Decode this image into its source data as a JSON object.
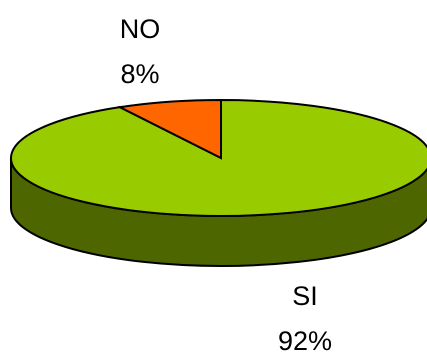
{
  "chart_data": {
    "type": "pie",
    "style": "3d",
    "slices": [
      {
        "label": "SI",
        "value": 92,
        "value_label": "92%",
        "color": "#99CC00",
        "side_color": "#4D6600"
      },
      {
        "label": "NO",
        "value": 8,
        "value_label": "8%",
        "color": "#FF6600",
        "side_color": "#993300"
      }
    ],
    "legend": "none",
    "outline_color": "#000000"
  }
}
